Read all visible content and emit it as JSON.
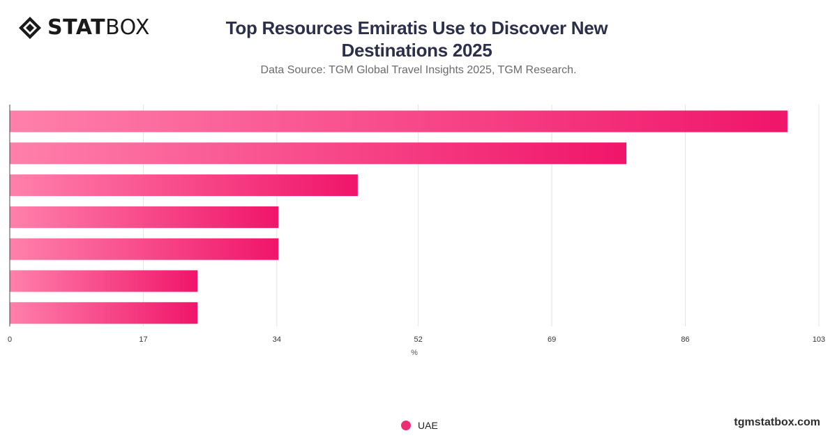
{
  "brand": {
    "logo_strong": "STAT",
    "logo_light": "BOX",
    "footer_url": "tgmstatbox.com"
  },
  "chart_data": {
    "type": "bar",
    "orientation": "horizontal",
    "title": "Top Resources Emiratis Use to Discover New Destinations 2025",
    "subtitle": "Data Source: TGM Global Travel Insights 2025, TGM Research.",
    "xlabel": "%",
    "ylabel": "",
    "xlim": [
      0,
      103
    ],
    "ticks": [
      0,
      17,
      34,
      52,
      69,
      86,
      103
    ],
    "grid": true,
    "legend_position": "bottom-center",
    "categories": [
      "",
      "",
      "",
      "",
      "",
      "",
      ""
    ],
    "series": [
      {
        "name": "UAE",
        "color": "#ee2e73",
        "values": [
          99,
          78.5,
          44.3,
          34.2,
          34.2,
          23.9,
          23.9
        ]
      }
    ]
  }
}
